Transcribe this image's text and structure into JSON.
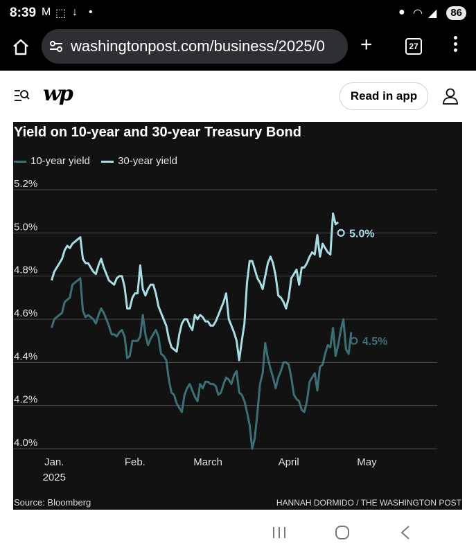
{
  "status_bar": {
    "time": "8:39",
    "battery": "86"
  },
  "browser": {
    "url": "washingtonpost.com/business/2025/0",
    "tab_count": "27"
  },
  "site_header": {
    "logo": "wp",
    "read_in_app": "Read in app"
  },
  "chart_data": {
    "type": "line",
    "title": "Yield on 10-year and 30-year Treasury Bond",
    "legend": [
      "10-year yield",
      "30-year yield"
    ],
    "y_ticks": [
      "5.2%",
      "5.0%",
      "4.8%",
      "4.6%",
      "4.4%",
      "4.2%",
      "4.0%"
    ],
    "ylim": [
      4.0,
      5.2
    ],
    "x_ticks": [
      {
        "label": "Jan.",
        "sub": "2025",
        "day": 3
      },
      {
        "label": "Feb.",
        "sub": "",
        "day": 34
      },
      {
        "label": "March",
        "sub": "",
        "day": 62
      },
      {
        "label": "April",
        "sub": "",
        "day": 93
      },
      {
        "label": "May",
        "sub": "",
        "day": 123
      }
    ],
    "xlim": [
      0,
      150
    ],
    "series": [
      {
        "name": "10-year yield",
        "color": "#3d7076",
        "end_label": "4.5%",
        "points": [
          [
            2,
            4.56
          ],
          [
            3,
            4.6
          ],
          [
            5,
            4.62
          ],
          [
            6,
            4.63
          ],
          [
            7,
            4.68
          ],
          [
            8,
            4.69
          ],
          [
            9,
            4.7
          ],
          [
            10,
            4.76
          ],
          [
            11,
            4.77
          ],
          [
            12,
            4.78
          ],
          [
            13,
            4.79
          ],
          [
            14,
            4.64
          ],
          [
            15,
            4.61
          ],
          [
            16,
            4.62
          ],
          [
            17,
            4.61
          ],
          [
            18,
            4.6
          ],
          [
            19,
            4.58
          ],
          [
            20,
            4.62
          ],
          [
            21,
            4.65
          ],
          [
            22,
            4.63
          ],
          [
            23,
            4.6
          ],
          [
            24,
            4.57
          ],
          [
            25,
            4.53
          ],
          [
            26,
            4.53
          ],
          [
            27,
            4.52
          ],
          [
            28,
            4.54
          ],
          [
            29,
            4.55
          ],
          [
            30,
            4.52
          ],
          [
            31,
            4.42
          ],
          [
            32,
            4.43
          ],
          [
            33,
            4.5
          ],
          [
            34,
            4.5
          ],
          [
            35,
            4.5
          ],
          [
            36,
            4.52
          ],
          [
            37,
            4.62
          ],
          [
            38,
            4.53
          ],
          [
            39,
            4.48
          ],
          [
            40,
            4.51
          ],
          [
            41,
            4.53
          ],
          [
            42,
            4.55
          ],
          [
            43,
            4.52
          ],
          [
            44,
            4.44
          ],
          [
            45,
            4.43
          ],
          [
            46,
            4.41
          ],
          [
            47,
            4.32
          ],
          [
            48,
            4.26
          ],
          [
            49,
            4.25
          ],
          [
            50,
            4.21
          ],
          [
            51,
            4.19
          ],
          [
            52,
            4.17
          ],
          [
            53,
            4.25
          ],
          [
            54,
            4.28
          ],
          [
            55,
            4.3
          ],
          [
            56,
            4.27
          ],
          [
            57,
            4.24
          ],
          [
            58,
            4.22
          ],
          [
            59,
            4.3
          ],
          [
            60,
            4.28
          ],
          [
            61,
            4.31
          ],
          [
            62,
            4.31
          ],
          [
            63,
            4.3
          ],
          [
            64,
            4.3
          ],
          [
            65,
            4.29
          ],
          [
            66,
            4.25
          ],
          [
            67,
            4.26
          ],
          [
            68,
            4.3
          ],
          [
            69,
            4.33
          ],
          [
            70,
            4.32
          ],
          [
            71,
            4.3
          ],
          [
            72,
            4.34
          ],
          [
            73,
            4.36
          ],
          [
            74,
            4.26
          ],
          [
            75,
            4.25
          ],
          [
            76,
            4.22
          ],
          [
            77,
            4.17
          ],
          [
            78,
            4.11
          ],
          [
            79,
            4.0
          ],
          [
            80,
            4.05
          ],
          [
            81,
            4.17
          ],
          [
            82,
            4.3
          ],
          [
            83,
            4.35
          ],
          [
            84,
            4.49
          ],
          [
            85,
            4.42
          ],
          [
            86,
            4.37
          ],
          [
            87,
            4.33
          ],
          [
            88,
            4.28
          ],
          [
            89,
            4.33
          ],
          [
            90,
            4.36
          ],
          [
            91,
            4.4
          ],
          [
            92,
            4.4
          ],
          [
            93,
            4.39
          ],
          [
            94,
            4.33
          ],
          [
            95,
            4.25
          ],
          [
            96,
            4.23
          ],
          [
            97,
            4.22
          ],
          [
            98,
            4.18
          ],
          [
            99,
            4.17
          ],
          [
            100,
            4.22
          ],
          [
            101,
            4.31
          ],
          [
            102,
            4.33
          ],
          [
            103,
            4.35
          ],
          [
            104,
            4.27
          ],
          [
            105,
            4.38
          ],
          [
            106,
            4.39
          ],
          [
            107,
            4.44
          ],
          [
            108,
            4.48
          ],
          [
            109,
            4.47
          ],
          [
            110,
            4.56
          ],
          [
            111,
            4.43
          ],
          [
            112,
            4.48
          ],
          [
            113,
            4.55
          ],
          [
            114,
            4.6
          ],
          [
            115,
            4.46
          ],
          [
            116,
            4.44
          ],
          [
            117,
            4.54
          ]
        ]
      },
      {
        "name": "30-year yield",
        "color": "#a8dde3",
        "end_label": "5.0%",
        "points": [
          [
            2,
            4.78
          ],
          [
            3,
            4.82
          ],
          [
            5,
            4.86
          ],
          [
            6,
            4.88
          ],
          [
            7,
            4.92
          ],
          [
            8,
            4.94
          ],
          [
            9,
            4.93
          ],
          [
            10,
            4.95
          ],
          [
            11,
            4.96
          ],
          [
            12,
            4.97
          ],
          [
            13,
            4.98
          ],
          [
            14,
            4.88
          ],
          [
            15,
            4.86
          ],
          [
            16,
            4.86
          ],
          [
            17,
            4.84
          ],
          [
            18,
            4.82
          ],
          [
            19,
            4.81
          ],
          [
            20,
            4.85
          ],
          [
            21,
            4.88
          ],
          [
            22,
            4.84
          ],
          [
            23,
            4.81
          ],
          [
            24,
            4.78
          ],
          [
            25,
            4.77
          ],
          [
            26,
            4.76
          ],
          [
            27,
            4.79
          ],
          [
            28,
            4.8
          ],
          [
            29,
            4.8
          ],
          [
            30,
            4.75
          ],
          [
            31,
            4.65
          ],
          [
            32,
            4.65
          ],
          [
            33,
            4.7
          ],
          [
            34,
            4.72
          ],
          [
            35,
            4.72
          ],
          [
            36,
            4.85
          ],
          [
            37,
            4.74
          ],
          [
            38,
            4.71
          ],
          [
            39,
            4.74
          ],
          [
            40,
            4.76
          ],
          [
            41,
            4.76
          ],
          [
            42,
            4.72
          ],
          [
            43,
            4.66
          ],
          [
            44,
            4.63
          ],
          [
            45,
            4.6
          ],
          [
            46,
            4.57
          ],
          [
            47,
            4.51
          ],
          [
            48,
            4.47
          ],
          [
            49,
            4.46
          ],
          [
            50,
            4.45
          ],
          [
            51,
            4.53
          ],
          [
            52,
            4.58
          ],
          [
            53,
            4.6
          ],
          [
            54,
            4.6
          ],
          [
            55,
            4.57
          ],
          [
            56,
            4.55
          ],
          [
            57,
            4.62
          ],
          [
            58,
            4.6
          ],
          [
            59,
            4.62
          ],
          [
            60,
            4.61
          ],
          [
            61,
            4.59
          ],
          [
            62,
            4.59
          ],
          [
            63,
            4.57
          ],
          [
            64,
            4.57
          ],
          [
            65,
            4.59
          ],
          [
            66,
            4.62
          ],
          [
            67,
            4.65
          ],
          [
            68,
            4.68
          ],
          [
            69,
            4.72
          ],
          [
            70,
            4.6
          ],
          [
            71,
            4.57
          ],
          [
            72,
            4.54
          ],
          [
            73,
            4.5
          ],
          [
            74,
            4.41
          ],
          [
            75,
            4.5
          ],
          [
            76,
            4.58
          ],
          [
            77,
            4.77
          ],
          [
            78,
            4.87
          ],
          [
            79,
            4.87
          ],
          [
            80,
            4.83
          ],
          [
            81,
            4.79
          ],
          [
            82,
            4.77
          ],
          [
            83,
            4.74
          ],
          [
            84,
            4.8
          ],
          [
            85,
            4.86
          ],
          [
            86,
            4.89
          ],
          [
            87,
            4.86
          ],
          [
            88,
            4.8
          ],
          [
            89,
            4.71
          ],
          [
            90,
            4.7
          ],
          [
            91,
            4.68
          ],
          [
            92,
            4.65
          ],
          [
            93,
            4.7
          ],
          [
            94,
            4.79
          ],
          [
            95,
            4.81
          ],
          [
            96,
            4.83
          ],
          [
            97,
            4.76
          ],
          [
            98,
            4.84
          ],
          [
            99,
            4.84
          ],
          [
            100,
            4.86
          ],
          [
            101,
            4.89
          ],
          [
            102,
            4.91
          ],
          [
            103,
            4.9
          ],
          [
            104,
            4.99
          ],
          [
            105,
            4.89
          ],
          [
            106,
            4.95
          ],
          [
            107,
            4.93
          ],
          [
            108,
            4.91
          ],
          [
            109,
            4.9
          ],
          [
            110,
            5.09
          ],
          [
            111,
            5.04
          ],
          [
            112,
            5.05
          ]
        ]
      }
    ],
    "source": "Source: Bloomberg",
    "credit": "HANNAH DORMIDO / THE WASHINGTON POST"
  }
}
